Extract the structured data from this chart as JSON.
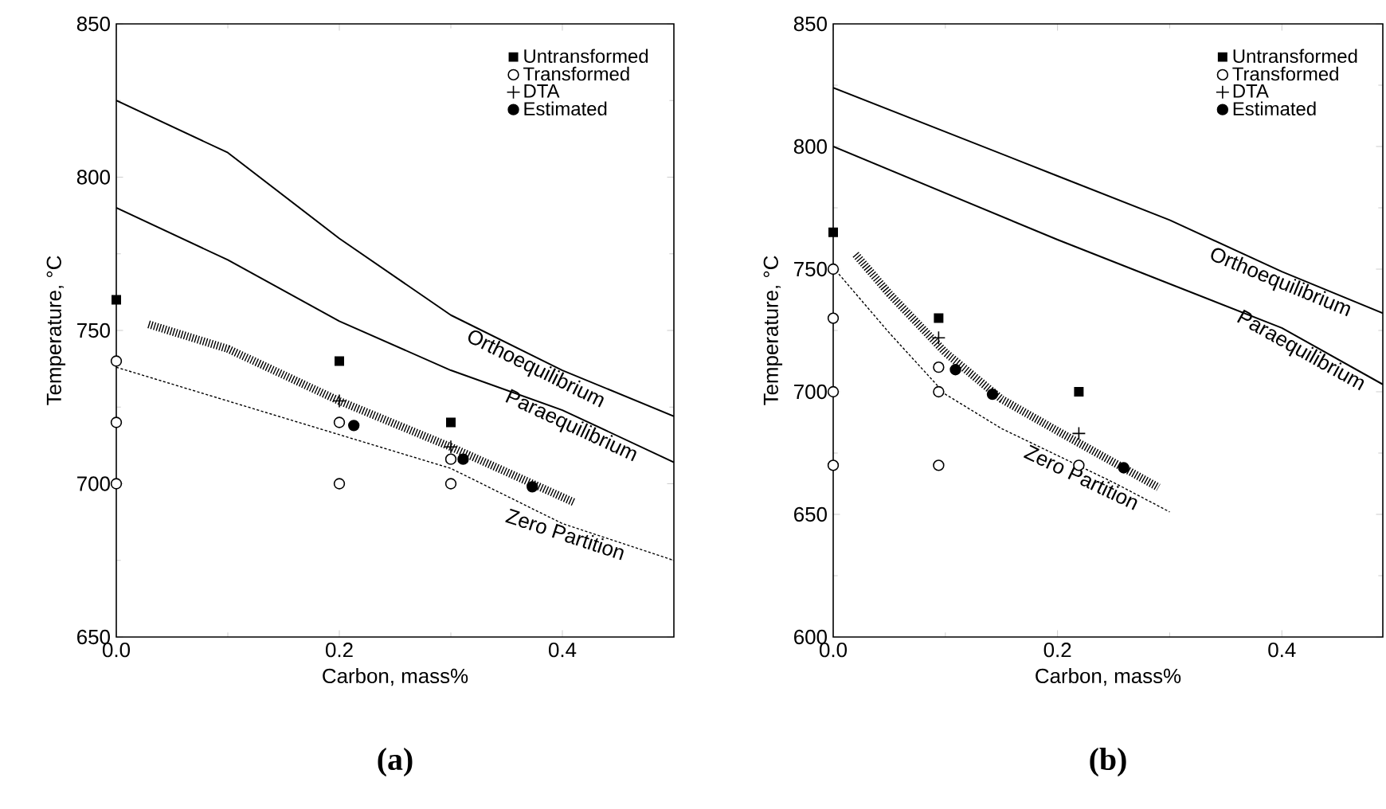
{
  "chart_data": [
    {
      "type": "scatter",
      "title": "(a)",
      "xlabel": "Carbon, mass%",
      "ylabel": "Temperature, °C",
      "xlim": [
        0,
        0.5
      ],
      "ylim": [
        650,
        850
      ],
      "xticks": [
        {
          "value": 0,
          "label": "0.0"
        },
        {
          "value": 0.2,
          "label": "0.2"
        },
        {
          "value": 0.4,
          "label": "0.4"
        }
      ],
      "yticks": [
        650,
        700,
        750,
        800,
        850
      ],
      "legend": "top right",
      "series": [
        {
          "name": "Untransformed",
          "color": "#000000",
          "marker": "square",
          "x": [
            0,
            0.2,
            0.3
          ],
          "values": [
            760,
            740,
            720
          ]
        },
        {
          "name": "Transformed",
          "color": "#ffffff",
          "marker": "circle",
          "x": [
            0,
            0,
            0,
            0.2,
            0.2,
            0.3,
            0.3
          ],
          "values": [
            740,
            720,
            700,
            720,
            700,
            708,
            700
          ]
        },
        {
          "name": "DTA",
          "color": "#000000",
          "marker": "cross",
          "x": [
            0.2,
            0.3
          ],
          "values": [
            727,
            712
          ]
        },
        {
          "name": "Estimated",
          "color": "#000000",
          "marker": "circle",
          "x": [
            0.213,
            0.311,
            0.373
          ],
          "values": [
            719,
            708,
            699
          ]
        },
        {
          "name": "Orthoequilibrium",
          "type": "line",
          "color": "#000000",
          "line_style": "solid",
          "x": [
            0,
            0.1,
            0.2,
            0.3,
            0.4,
            0.5
          ],
          "values": [
            825,
            808,
            780,
            755,
            737,
            722
          ]
        },
        {
          "name": "Paraequilibrium",
          "type": "line",
          "color": "#000000",
          "line_style": "solid",
          "x": [
            0,
            0.1,
            0.2,
            0.3,
            0.4,
            0.5
          ],
          "values": [
            790,
            773,
            753,
            737,
            724,
            707
          ]
        },
        {
          "name": "Zero Partition",
          "type": "line",
          "color": "#000000",
          "line_style": "dashed",
          "x": [
            0,
            0.1,
            0.2,
            0.3,
            0.4,
            0.5
          ],
          "values": [
            738,
            727,
            716,
            705,
            687,
            675
          ]
        },
        {
          "type": "line",
          "color": "#000000",
          "line_style": "dotted",
          "x": [
            0.029,
            0.1,
            0.2,
            0.3,
            0.41
          ],
          "values": [
            752,
            744,
            727,
            712,
            694
          ]
        }
      ]
    },
    {
      "type": "scatter",
      "title": "(b)",
      "xlabel": "Carbon, mass%",
      "ylabel": "Temperature, °C",
      "xlim": [
        0,
        0.49
      ],
      "ylim": [
        600,
        850
      ],
      "xticks": [
        {
          "value": 0,
          "label": "0.0"
        },
        {
          "value": 0.2,
          "label": "0.2"
        },
        {
          "value": 0.4,
          "label": "0.4"
        }
      ],
      "yticks": [
        600,
        650,
        700,
        750,
        800,
        850
      ],
      "legend": "top right",
      "series": [
        {
          "name": "Untransformed",
          "color": "#000000",
          "marker": "square",
          "x": [
            0,
            0.094,
            0.219
          ],
          "values": [
            765,
            730,
            700
          ]
        },
        {
          "name": "Transformed",
          "color": "#ffffff",
          "marker": "circle",
          "x": [
            0,
            0,
            0,
            0,
            0.094,
            0.094,
            0.094,
            0.219
          ],
          "values": [
            750,
            730,
            700,
            670,
            710,
            700,
            670,
            670
          ]
        },
        {
          "name": "DTA",
          "color": "#000000",
          "marker": "cross",
          "x": [
            0.094,
            0.219
          ],
          "values": [
            722,
            683
          ]
        },
        {
          "name": "Estimated",
          "color": "#000000",
          "marker": "circle",
          "x": [
            0.109,
            0.142,
            0.259
          ],
          "values": [
            709,
            699,
            669
          ]
        },
        {
          "name": "Orthoequilibrium",
          "type": "line",
          "color": "#000000",
          "line_style": "solid",
          "x": [
            0,
            0.1,
            0.2,
            0.3,
            0.4,
            0.49
          ],
          "values": [
            824,
            806,
            788,
            770,
            749,
            732
          ]
        },
        {
          "name": "Paraequilibrium",
          "type": "line",
          "color": "#000000",
          "line_style": "solid",
          "x": [
            0,
            0.1,
            0.2,
            0.3,
            0.4,
            0.49
          ],
          "values": [
            800,
            781,
            762,
            744,
            726,
            703
          ]
        },
        {
          "name": "Zero Partition",
          "type": "line",
          "color": "#000000",
          "line_style": "dashed",
          "x": [
            0.005,
            0.05,
            0.1,
            0.15,
            0.2,
            0.25,
            0.3
          ],
          "values": [
            748,
            724,
            699,
            685,
            674,
            663,
            651
          ]
        },
        {
          "type": "line",
          "color": "#000000",
          "line_style": "dotted",
          "x": [
            0.02,
            0.05,
            0.1,
            0.15,
            0.2,
            0.29
          ],
          "values": [
            756,
            740,
            716,
            697,
            684,
            661
          ]
        }
      ]
    }
  ]
}
